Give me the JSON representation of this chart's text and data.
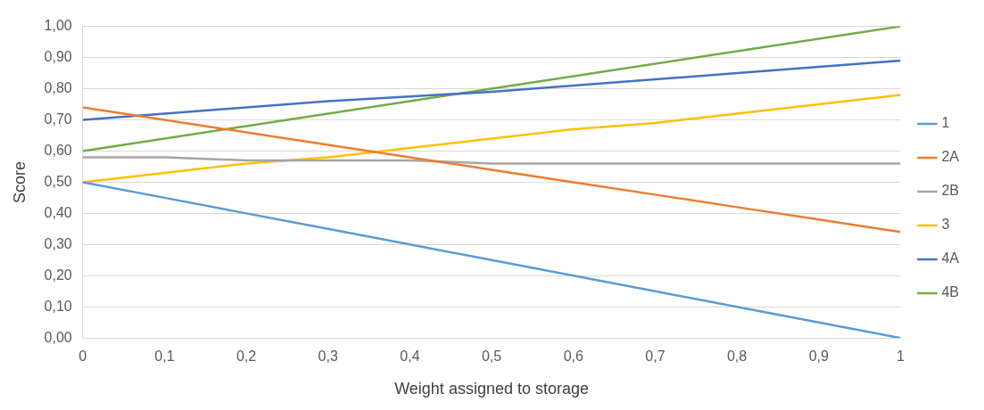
{
  "chart_data": {
    "type": "line",
    "xlabel": "Weight assigned to storage",
    "ylabel": "Score",
    "x": [
      0,
      0.1,
      0.2,
      0.3,
      0.4,
      0.5,
      0.6,
      0.7,
      0.8,
      0.9,
      1
    ],
    "series": [
      {
        "name": "1",
        "color": "#5b9bd5",
        "values": [
          0.5,
          0.45,
          0.4,
          0.35,
          0.3,
          0.25,
          0.2,
          0.15,
          0.1,
          0.05,
          0
        ]
      },
      {
        "name": "2A",
        "color": "#ed7d31",
        "values": [
          0.74,
          0.7,
          0.66,
          0.62,
          0.58,
          0.54,
          0.5,
          0.46,
          0.42,
          0.38,
          0.34
        ]
      },
      {
        "name": "2B",
        "color": "#a5a5a5",
        "values": [
          0.58,
          0.58,
          0.57,
          0.57,
          0.57,
          0.56,
          0.56,
          0.56,
          0.56,
          0.56,
          0.56
        ]
      },
      {
        "name": "3",
        "color": "#ffc000",
        "values": [
          0.5,
          0.53,
          0.56,
          0.58,
          0.61,
          0.64,
          0.67,
          0.69,
          0.72,
          0.75,
          0.78
        ]
      },
      {
        "name": "4A",
        "color": "#4472c4",
        "values": [
          0.7,
          0.72,
          0.74,
          0.76,
          0.775,
          0.79,
          0.81,
          0.83,
          0.85,
          0.87,
          0.89
        ]
      },
      {
        "name": "4B",
        "color": "#70ad47",
        "values": [
          0.6,
          0.64,
          0.68,
          0.72,
          0.76,
          0.8,
          0.84,
          0.88,
          0.92,
          0.96,
          1
        ]
      }
    ],
    "xlim": [
      0,
      1
    ],
    "xticks": [
      0,
      {
        "value": 0.1,
        "label": "0,1"
      },
      {
        "value": 0.2,
        "label": "0,2"
      },
      {
        "value": 0.3,
        "label": "0,3"
      },
      {
        "value": 0.4,
        "label": "0,4"
      },
      {
        "value": 0.5,
        "label": "0,5"
      },
      {
        "value": 0.6,
        "label": "0,6"
      },
      {
        "value": 0.7,
        "label": "0,7"
      },
      {
        "value": 0.8,
        "label": "0,8"
      },
      {
        "value": 0.9,
        "label": "0,9"
      },
      1
    ],
    "ylim": [
      0,
      1
    ],
    "yticks": [
      {
        "value": 0,
        "label": "0,00"
      },
      {
        "value": 0.1,
        "label": "0,10"
      },
      {
        "value": 0.2,
        "label": "0,20"
      },
      {
        "value": 0.3,
        "label": "0,30"
      },
      {
        "value": 0.4,
        "label": "0,40"
      },
      {
        "value": 0.5,
        "label": "0,50"
      },
      {
        "value": 0.6,
        "label": "0,60"
      },
      {
        "value": 0.7,
        "label": "0,70"
      },
      {
        "value": 0.8,
        "label": "0,80"
      },
      {
        "value": 0.9,
        "label": "0,90"
      },
      {
        "value": 1,
        "label": "1,00"
      }
    ],
    "grid": "y",
    "legend": "right",
    "marker": "none",
    "line_style": "solid"
  }
}
